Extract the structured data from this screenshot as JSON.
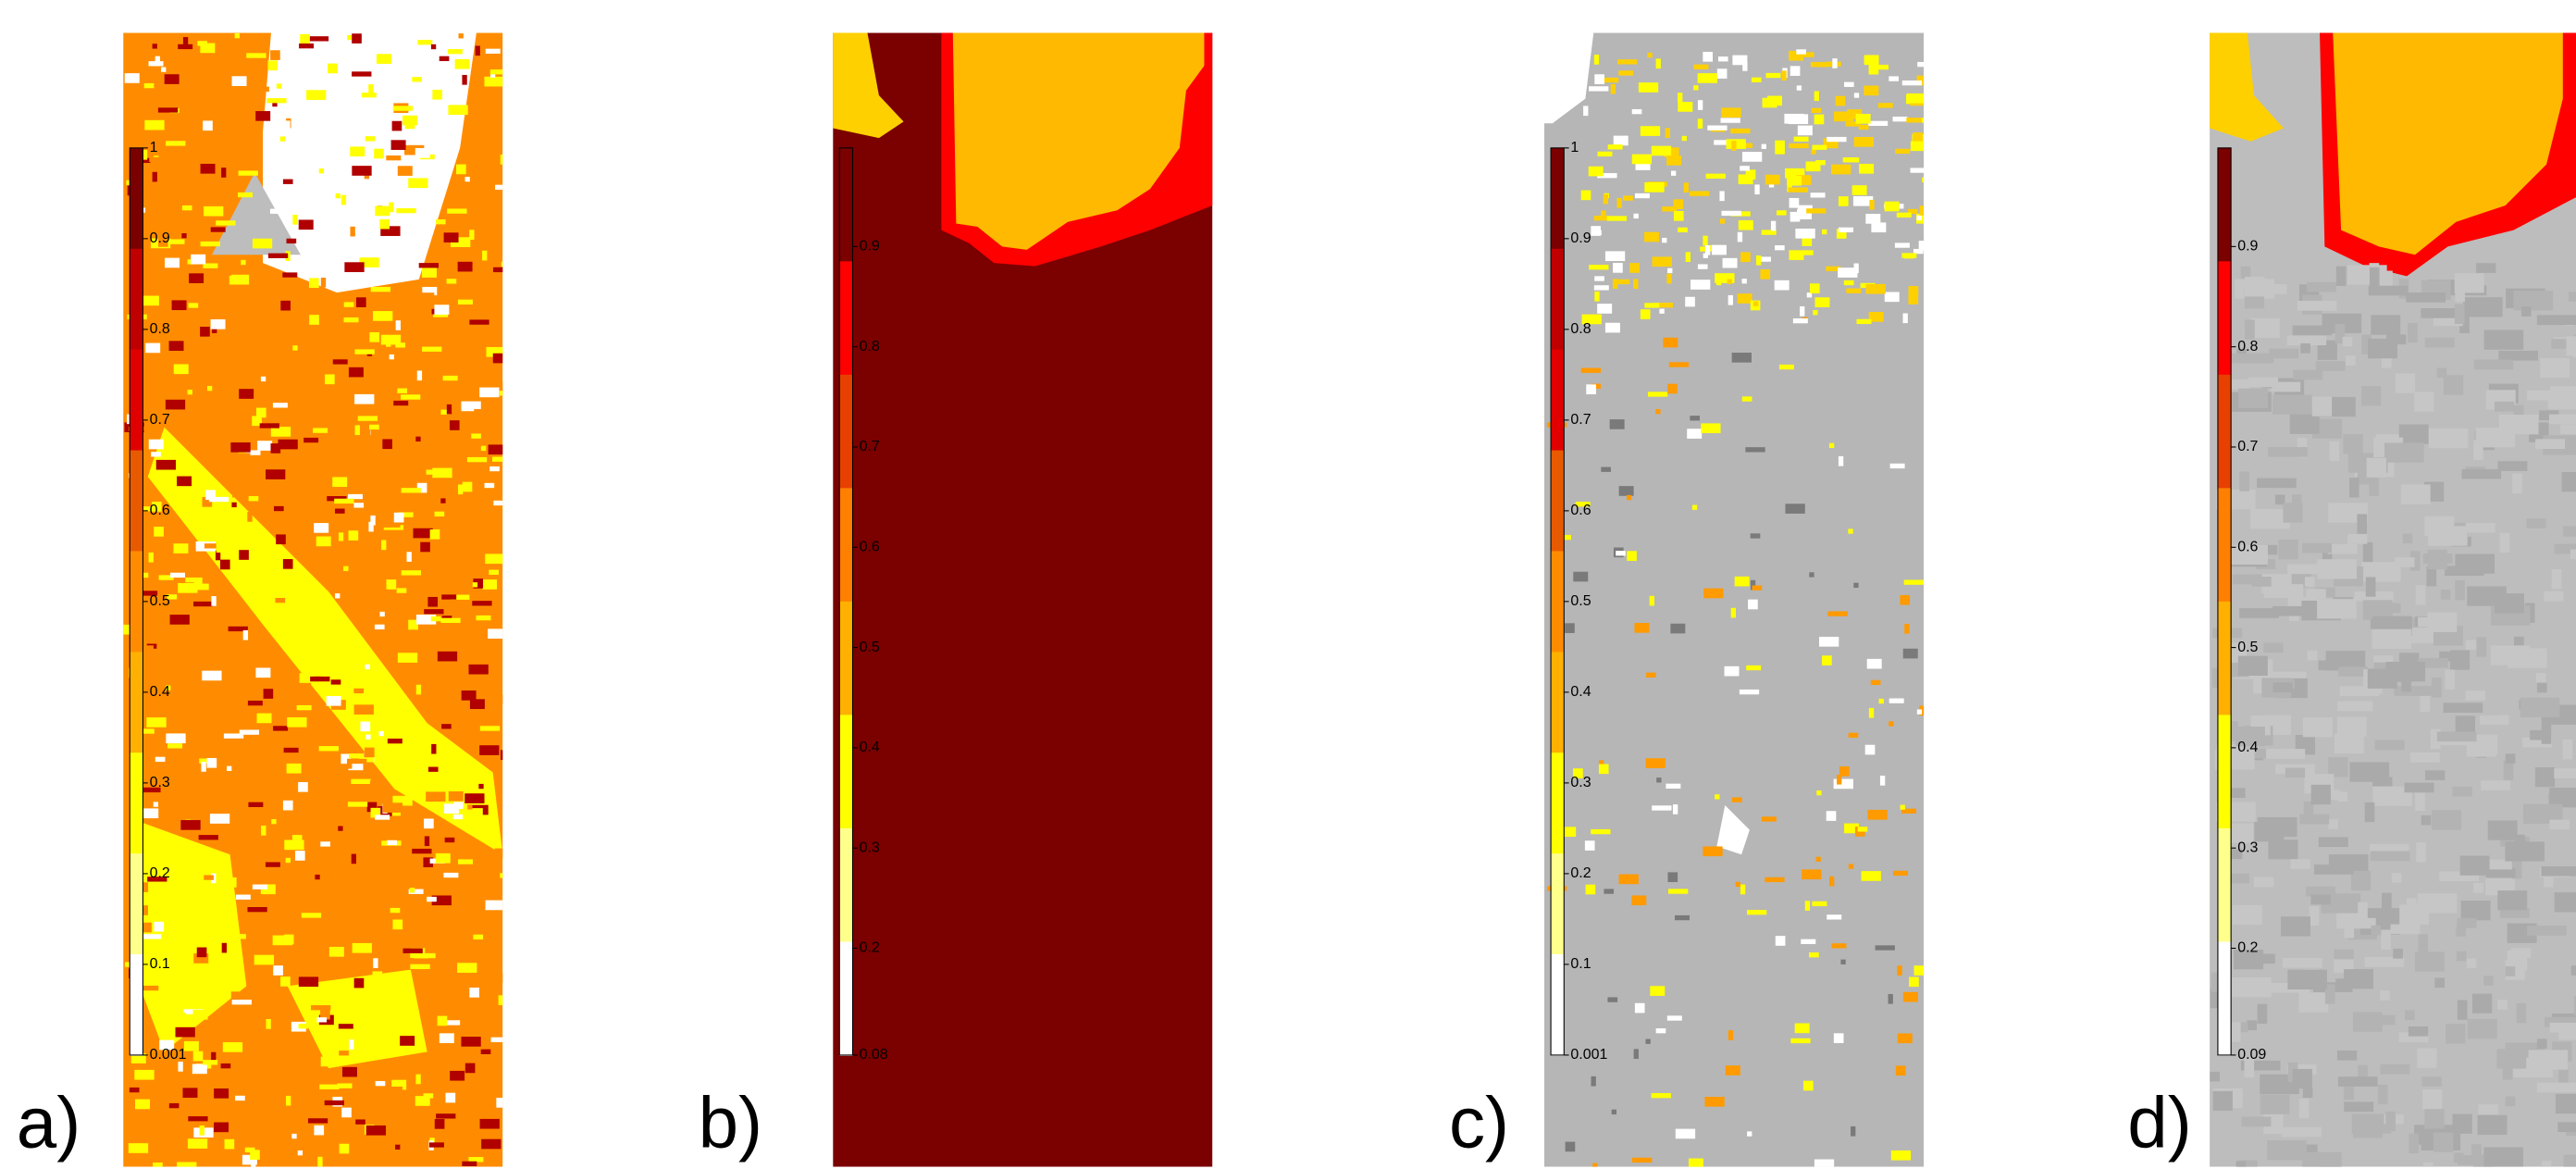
{
  "panels": [
    {
      "label": "a)",
      "ticks": [
        "1",
        "0.9",
        "0.8",
        "0.7",
        "0.6",
        "0.5",
        "0.4",
        "0.3",
        "0.2",
        "0.1",
        "0.001"
      ]
    },
    {
      "label": "b)",
      "ticks": [
        "0.9",
        "0.8",
        "0.7",
        "0.6",
        "0.5",
        "0.4",
        "0.3",
        "0.2",
        "0.08"
      ]
    },
    {
      "label": "c)",
      "ticks": [
        "1",
        "0.9",
        "0.8",
        "0.7",
        "0.6",
        "0.5",
        "0.4",
        "0.3",
        "0.2",
        "0.1",
        "0.001"
      ]
    },
    {
      "label": "d)",
      "ticks": [
        "0.9",
        "0.8",
        "0.7",
        "0.6",
        "0.5",
        "0.4",
        "0.3",
        "0.2",
        "0.09"
      ]
    }
  ]
}
